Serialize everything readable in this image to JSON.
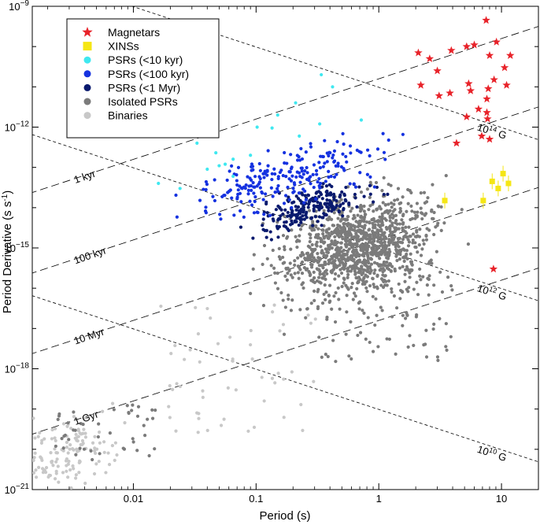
{
  "chart_data": {
    "type": "scatter",
    "title": "",
    "xlabel": "Period (s)",
    "ylabel": "Period Derivative (s s",
    "ylabel_sup": "-1",
    "ylabel_close": ")",
    "x_scale": "log",
    "y_scale": "log",
    "xlim": [
      0.0015,
      20
    ],
    "ylim": [
      1e-21,
      1e-09
    ],
    "x_ticks": [
      {
        "value": 0.01,
        "label": "0.01"
      },
      {
        "value": 0.1,
        "label": "0.1"
      },
      {
        "value": 1,
        "label": "1"
      },
      {
        "value": 10,
        "label": "10"
      }
    ],
    "y_ticks": [
      {
        "value": 1e-09,
        "base": "10",
        "exp": "−9"
      },
      {
        "value": 1e-12,
        "base": "10",
        "exp": "−12"
      },
      {
        "value": 1e-15,
        "base": "10",
        "exp": "−15"
      },
      {
        "value": 1e-18,
        "base": "10",
        "exp": "−18"
      },
      {
        "value": 1e-21,
        "base": "10",
        "exp": "−21"
      }
    ],
    "age_lines": [
      {
        "label": "1 kyr",
        "age_yr": 1000.0
      },
      {
        "label": "100 kyr",
        "age_yr": 100000.0
      },
      {
        "label": "10 Myr",
        "age_yr": 10000000.0
      },
      {
        "label": "1 Gyr",
        "age_yr": 1000000000.0
      }
    ],
    "field_lines": [
      {
        "label_base": "10",
        "label_exp": "14",
        "label_unit": " G",
        "B": 100000000000000.0
      },
      {
        "label_base": "10",
        "label_exp": "12",
        "label_unit": " G",
        "B": 1000000000000.0
      },
      {
        "label_base": "10",
        "label_exp": "10",
        "label_unit": " G",
        "B": 10000000000.0
      }
    ],
    "series": [
      {
        "name": "Magnetars",
        "marker": "star",
        "color": "#e8232a",
        "points": [
          [
            2.1,
            7e-11
          ],
          [
            2.6,
            5e-11
          ],
          [
            3.0,
            2.5e-11
          ],
          [
            3.9,
            8e-11
          ],
          [
            5.2,
            1e-10
          ],
          [
            6.0,
            1.1e-10
          ],
          [
            7.5,
            4.5e-10
          ],
          [
            8.0,
            6e-11
          ],
          [
            9.1,
            1.3e-10
          ],
          [
            10.6,
            3e-11
          ],
          [
            11.8,
            6e-11
          ],
          [
            2.2,
            1.1e-11
          ],
          [
            3.8,
            7e-12
          ],
          [
            5.4,
            1.2e-11
          ],
          [
            5.6,
            8e-12
          ],
          [
            6.5,
            2.8e-12
          ],
          [
            7.6,
            5e-12
          ],
          [
            8.7,
            1.5e-11
          ],
          [
            11.0,
            1.1e-11
          ],
          [
            3.1,
            6e-12
          ],
          [
            8.0,
            5e-13
          ],
          [
            4.3,
            4e-13
          ],
          [
            5.2,
            1.8e-12
          ],
          [
            7.8,
            9e-12
          ],
          [
            7.6,
            2.3e-12
          ],
          [
            6.9,
            6e-13
          ],
          [
            8.6,
            3e-16
          ],
          [
            7.7,
            1.6e-12
          ]
        ]
      },
      {
        "name": "XINSs",
        "marker": "square",
        "color": "#f5e614",
        "points": [
          [
            3.45,
            1.5e-14
          ],
          [
            7.1,
            1.5e-14
          ],
          [
            8.4,
            4.5e-14
          ],
          [
            10.3,
            7e-14
          ],
          [
            11.4,
            4e-14
          ],
          [
            9.4,
            3e-14
          ]
        ]
      },
      {
        "name": "PSRs (<10 kyr)",
        "marker": "circle",
        "color": "#3fe8f0",
        "points": [
          [
            0.016,
            4e-14
          ],
          [
            0.024,
            3e-14
          ],
          [
            0.033,
            4e-13
          ],
          [
            0.047,
            2.3e-13
          ],
          [
            0.05,
            1.1e-13
          ],
          [
            0.065,
            1.6e-13
          ],
          [
            0.09,
            2e-13
          ],
          [
            0.102,
            1e-12
          ],
          [
            0.135,
            9.5e-13
          ],
          [
            0.15,
            2e-12
          ],
          [
            0.21,
            4e-12
          ],
          [
            0.33,
            1.2e-12
          ],
          [
            0.34,
            2e-11
          ],
          [
            0.42,
            1e-11
          ],
          [
            0.056,
            1.2e-13
          ],
          [
            0.04,
            9e-14
          ],
          [
            0.065,
            6e-14
          ],
          [
            0.225,
            6e-13
          ],
          [
            0.72,
            1.5e-12
          ]
        ]
      },
      {
        "name": "PSRs (<100 kyr)",
        "marker": "circle",
        "color": "#1532e0",
        "points": []
      },
      {
        "name": "PSRs (<1 Myr)",
        "marker": "circle",
        "color": "#091a6e",
        "points": []
      },
      {
        "name": "Isolated PSRs",
        "marker": "circle",
        "color": "#7b7b7b",
        "points": []
      },
      {
        "name": "Binaries",
        "marker": "circle",
        "color": "#c8c8c8",
        "points": []
      }
    ]
  }
}
